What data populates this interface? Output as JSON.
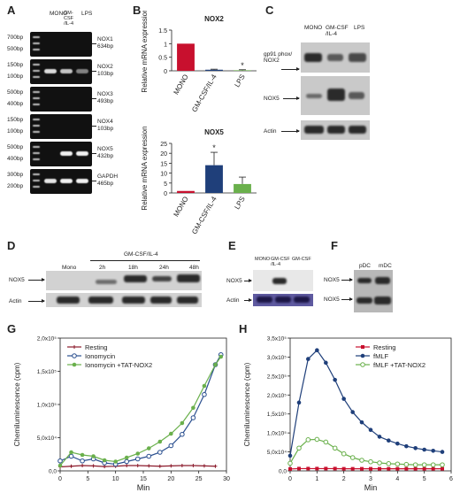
{
  "panels": {
    "A": {
      "letter": "A",
      "lanes": [
        "MONO",
        "GM-CSF /IL-4",
        "LPS"
      ],
      "rows": [
        {
          "left": [
            "700bp",
            "500bp"
          ],
          "gene": "NOX1",
          "size": "634bp"
        },
        {
          "left": [
            "150bp",
            "100bp"
          ],
          "gene": "NOX2",
          "size": "103bp"
        },
        {
          "left": [
            "500bp",
            "400bp"
          ],
          "gene": "NOX3",
          "size": "493bp"
        },
        {
          "left": [
            "150bp",
            "100bp"
          ],
          "gene": "NOX4",
          "size": "103bp"
        },
        {
          "left": [
            "500bp",
            "400bp"
          ],
          "gene": "NOX5",
          "size": "432bp"
        },
        {
          "left": [
            "300bp",
            "200bp"
          ],
          "gene": "GAPDH",
          "size": "465bp"
        }
      ]
    },
    "B": {
      "letter": "B"
    },
    "C": {
      "letter": "C",
      "lanes": [
        "MONO",
        "GM-CSF /IL-4",
        "LPS"
      ],
      "rows": [
        "gp91 phox/ NOX2",
        "NOX5",
        "Actin"
      ]
    },
    "D": {
      "letter": "D",
      "group_label": "GM-CSF/IL-4",
      "lanes": [
        "Mono",
        "2h",
        "18h",
        "24h",
        "48h"
      ],
      "rows": [
        "NOX5",
        "Actin"
      ]
    },
    "E": {
      "letter": "E",
      "lanes": [
        "MONO",
        "GM-CSF /IL-4",
        "GM-CSF"
      ],
      "rows": [
        "NOX5",
        "Actin"
      ]
    },
    "F": {
      "letter": "F",
      "lanes": [
        "pDC",
        "mDC"
      ],
      "rows": [
        "NOX5",
        "NOX5"
      ]
    },
    "G": {
      "letter": "G"
    },
    "H": {
      "letter": "H"
    }
  },
  "chart_data": [
    {
      "id": "B-top",
      "type": "bar",
      "title": "NOX2",
      "ylabel": "Relative mRNA expression",
      "categories": [
        "MONO",
        "GM-CSF/IL-4",
        "LPS"
      ],
      "values": [
        1.0,
        0.04,
        0.02
      ],
      "errors": [
        0,
        0.02,
        0.02
      ],
      "colors": [
        "#c8102e",
        "#1f3f7a",
        "#6ab04c"
      ],
      "annotations": [
        "",
        "",
        "*"
      ],
      "ylim": [
        0,
        1.5
      ],
      "yticks": [
        "0",
        "0.5",
        "1",
        "1.5"
      ]
    },
    {
      "id": "B-bottom",
      "type": "bar",
      "title": "NOX5",
      "ylabel": "Relative mRNA expression",
      "categories": [
        "MONO",
        "GM-CSF/IL-4",
        "LPS"
      ],
      "values": [
        1.0,
        14,
        4.5
      ],
      "errors": [
        0,
        6.5,
        3.5
      ],
      "colors": [
        "#c8102e",
        "#1f3f7a",
        "#6ab04c"
      ],
      "annotations": [
        "",
        "*",
        ""
      ],
      "ylim": [
        0,
        25
      ],
      "yticks": [
        "0",
        "5",
        "10",
        "15",
        "20",
        "25"
      ]
    },
    {
      "id": "G",
      "type": "line",
      "xlabel": "Min",
      "ylabel": "Chemiluminescence (cpm)",
      "xlim": [
        0,
        30
      ],
      "ylim": [
        0,
        200000
      ],
      "xticks": [
        "0",
        "5",
        "10",
        "15",
        "20",
        "25",
        "30"
      ],
      "yticks": [
        "0,0",
        "5,0x10⁴",
        "1,0x10⁵",
        "1,5x10⁵",
        "2,0x10⁵"
      ],
      "legend": "top-left",
      "series": [
        {
          "name": "Resting",
          "color": "#8b1a2b",
          "marker": "plus",
          "x": [
            0,
            2,
            4,
            6,
            8,
            10,
            12,
            14,
            16,
            18,
            20,
            22,
            24,
            26,
            28
          ],
          "y": [
            6000,
            7000,
            8000,
            7500,
            6500,
            7000,
            8000,
            8000,
            7500,
            7000,
            7500,
            8000,
            8000,
            7500,
            7000
          ]
        },
        {
          "name": "Ionomycin",
          "color": "#2a4f8f",
          "marker": "open-circle",
          "x": [
            0,
            2,
            4,
            6,
            8,
            10,
            12,
            14,
            16,
            18,
            20,
            22,
            24,
            26,
            28,
            29
          ],
          "y": [
            15000,
            22000,
            15000,
            18000,
            12000,
            10000,
            14000,
            18000,
            22000,
            28000,
            38000,
            55000,
            80000,
            115000,
            160000,
            175000
          ]
        },
        {
          "name": "Ionomycin +TAT-NOX2",
          "color": "#6ab04c",
          "marker": "filled-circle",
          "x": [
            0,
            2,
            4,
            6,
            8,
            10,
            12,
            14,
            16,
            18,
            20,
            22,
            24,
            26,
            28,
            29
          ],
          "y": [
            8000,
            28000,
            24000,
            22000,
            16000,
            14000,
            20000,
            26000,
            34000,
            44000,
            56000,
            72000,
            95000,
            128000,
            160000,
            172000
          ]
        }
      ]
    },
    {
      "id": "H",
      "type": "line",
      "xlabel": "Min",
      "ylabel": "Chemiluminescence (cpm)",
      "xlim": [
        0,
        6
      ],
      "ylim": [
        0,
        350000
      ],
      "xticks": [
        "0",
        "1",
        "2",
        "3",
        "4",
        "5",
        "6"
      ],
      "yticks": [
        "0,0",
        "5,0x10⁴",
        "1,0x10⁵",
        "1,5x10⁵",
        "2,0x10⁵",
        "2,5x10⁵",
        "3,0x10⁵",
        "3,5x10⁵"
      ],
      "legend": "top-right",
      "series": [
        {
          "name": "Resting",
          "color": "#c8102e",
          "marker": "filled-square",
          "x": [
            0,
            0.33,
            0.67,
            1,
            1.33,
            1.67,
            2,
            2.33,
            2.67,
            3,
            3.33,
            3.67,
            4,
            4.33,
            4.67,
            5,
            5.33,
            5.67
          ],
          "y": [
            5000,
            6000,
            6000,
            6000,
            6000,
            6000,
            5500,
            5500,
            5500,
            5500,
            5500,
            5500,
            5500,
            5500,
            5500,
            5500,
            5500,
            5500
          ]
        },
        {
          "name": "fMLF",
          "color": "#1f3f7a",
          "marker": "filled-circle",
          "x": [
            0,
            0.33,
            0.67,
            1,
            1.33,
            1.67,
            2,
            2.33,
            2.67,
            3,
            3.33,
            3.67,
            4,
            4.33,
            4.67,
            5,
            5.33,
            5.67
          ],
          "y": [
            40000,
            180000,
            295000,
            318000,
            285000,
            240000,
            190000,
            155000,
            128000,
            108000,
            90000,
            80000,
            72000,
            65000,
            60000,
            56000,
            53000,
            50000
          ]
        },
        {
          "name": "fMLF +TAT-NOX2",
          "color": "#6ab04c",
          "marker": "open-circle",
          "x": [
            0,
            0.33,
            0.67,
            1,
            1.33,
            1.67,
            2,
            2.33,
            2.67,
            3,
            3.33,
            3.67,
            4,
            4.33,
            4.67,
            5,
            5.33,
            5.67
          ],
          "y": [
            20000,
            60000,
            82000,
            83000,
            76000,
            60000,
            45000,
            35000,
            28000,
            24000,
            21000,
            19000,
            18000,
            17000,
            16000,
            16000,
            16000,
            16000
          ]
        }
      ]
    }
  ]
}
